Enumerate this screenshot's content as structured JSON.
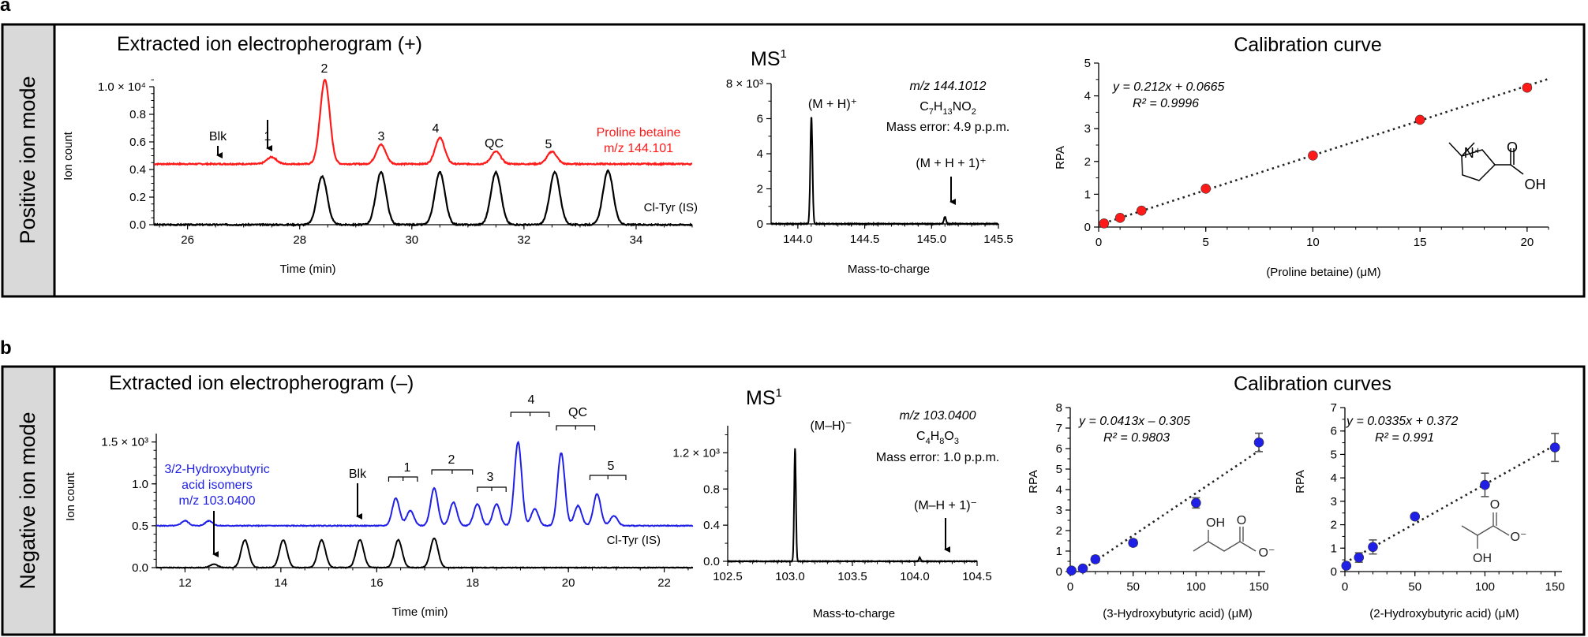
{
  "panels": {
    "a": {
      "letter": "a",
      "mode_label": "Positive ion mode",
      "eph_title": "Extracted ion electropherogram (+)",
      "eph_ylabel": "Ion count",
      "eph_xlabel": "Time (min)",
      "eph_yticks": [
        "0.0",
        "0.2",
        "0.4",
        "0.6",
        "0.8",
        "1.0 × 10⁴"
      ],
      "eph_xticks": [
        "26",
        "28",
        "30",
        "32",
        "34"
      ],
      "trace_label_l1": "Proline betaine",
      "trace_label_l2": "m/z 144.101",
      "is_label": "Cl-Tyr (IS)",
      "peak_labels": {
        "blk": "Blk",
        "p1": "1",
        "p2": "2",
        "p3": "3",
        "p4": "4",
        "qc": "QC",
        "p5": "5"
      },
      "ms_title": "MS",
      "ms_title_sup": "1",
      "ms_xlabel": "Mass-to-charge",
      "ms_yticks": [
        "0",
        "2",
        "4",
        "6",
        "8 × 10³"
      ],
      "ms_xticks": [
        "144.0",
        "144.5",
        "145.0",
        "145.5"
      ],
      "ms_mz": "m/z 144.1012",
      "ms_formula": "C7H13NO2",
      "ms_error": "Mass error: 4.9 p.p.m.",
      "ms_peak1": "(M + H)⁺",
      "ms_peak2": "(M + H + 1)⁺",
      "cal_title": "Calibration curve",
      "cal_xlabel": "(Proline betaine) (μM)",
      "cal_ylabel": "RPA",
      "cal_eq": "y = 0.212x + 0.0665",
      "cal_r2": "R² = 0.9996",
      "cal_xticks": [
        "0",
        "5",
        "10",
        "15",
        "20"
      ],
      "cal_yticks": [
        "0",
        "1",
        "2",
        "3",
        "4",
        "5"
      ],
      "struct_n": "N⁺",
      "struct_o": "O",
      "struct_oh": "OH"
    },
    "b": {
      "letter": "b",
      "mode_label": "Negative ion mode",
      "eph_title": "Extracted ion electropherogram (–)",
      "eph_ylabel": "Ion count",
      "eph_xlabel": "Time (min)",
      "eph_yticks": [
        "0.0",
        "0.5",
        "1.0",
        "1.5 × 10³"
      ],
      "eph_xticks": [
        "12",
        "14",
        "16",
        "18",
        "20",
        "22"
      ],
      "trace_label_l1": "3/2-Hydroxybutyric",
      "trace_label_l2": "acid isomers",
      "trace_label_l3": "m/z 103.0400",
      "is_label": "Cl-Tyr (IS)",
      "peak_labels": {
        "blk": "Blk",
        "p1": "1",
        "p2": "2",
        "p3": "3",
        "p4": "4",
        "qc": "QC",
        "p5": "5"
      },
      "ms_title": "MS",
      "ms_title_sup": "1",
      "ms_xlabel": "Mass-to-charge",
      "ms_yticks": [
        "0.0",
        "0.4",
        "0.8",
        "1.2 × 10³"
      ],
      "ms_xticks": [
        "102.5",
        "103.0",
        "103.5",
        "104.0",
        "104.5"
      ],
      "ms_mz": "m/z 103.0400",
      "ms_formula": "C4H8O3",
      "ms_error": "Mass error: 1.0 p.p.m.",
      "ms_peak1": "(M–H)⁻",
      "ms_peak2": "(M–H + 1)⁻",
      "cal_title": "Calibration curves",
      "cal1_xlabel": "(3-Hydroxybutyric acid) (μM)",
      "cal2_xlabel": "(2-Hydroxybutyric acid) (μM)",
      "cal_ylabel": "RPA",
      "cal1_eq": "y = 0.0413x – 0.305",
      "cal1_r2": "R² = 0.9803",
      "cal2_eq": "y = 0.0335x + 0.372",
      "cal2_r2": "R² = 0.991",
      "cal_xticks": [
        "0",
        "50",
        "100",
        "150"
      ],
      "cal_yticks": [
        "0",
        "1",
        "2",
        "3",
        "4",
        "5",
        "6",
        "7",
        "8"
      ],
      "struct_oh": "OH",
      "struct_o": "O",
      "struct_om": "O⁻"
    }
  },
  "colors": {
    "red": "#ff1a1a",
    "blue": "#1f1fe6",
    "black": "#000000",
    "label_bg": "#d9d9d9"
  },
  "chart_data": [
    {
      "type": "line",
      "title": "Extracted ion electropherogram (+)",
      "xlabel": "Time (min)",
      "ylabel": "Ion count",
      "xlim": [
        25.4,
        35
      ],
      "ylim": [
        0,
        10000
      ],
      "series": [
        {
          "name": "Proline betaine m/z 144.101",
          "color": "#ff1a1a",
          "baseline": 4400,
          "peaks": [
            [
              27.5,
              4900
            ],
            [
              28.45,
              10500
            ],
            [
              29.45,
              5800
            ],
            [
              30.5,
              6300
            ],
            [
              31.5,
              5300
            ],
            [
              32.5,
              5300
            ]
          ]
        },
        {
          "name": "Cl-Tyr (IS)",
          "color": "#000000",
          "baseline": 0,
          "peaks": [
            [
              28.4,
              3500
            ],
            [
              29.45,
              3800
            ],
            [
              30.5,
              3800
            ],
            [
              31.5,
              3800
            ],
            [
              32.55,
              3800
            ],
            [
              33.5,
              3900
            ]
          ]
        }
      ]
    },
    {
      "type": "line",
      "title": "MS1",
      "xlabel": "Mass-to-charge",
      "xlim": [
        143.8,
        145.5
      ],
      "ylim": [
        0,
        8000
      ],
      "series": [
        {
          "name": "",
          "peaks": [
            [
              144.1012,
              6100
            ],
            [
              145.1,
              400
            ]
          ]
        }
      ]
    },
    {
      "type": "scatter",
      "title": "Calibration curve",
      "xlabel": "(Proline betaine) (μM)",
      "ylabel": "RPA",
      "xlim": [
        0,
        21
      ],
      "ylim": [
        0,
        5
      ],
      "x": [
        0.25,
        1,
        2,
        5,
        10,
        15,
        20
      ],
      "y": [
        0.11,
        0.28,
        0.5,
        1.17,
        2.18,
        3.27,
        4.25
      ],
      "fit": {
        "slope": 0.212,
        "intercept": 0.0665
      },
      "color": "#ff1a1a"
    },
    {
      "type": "line",
      "title": "Extracted ion electropherogram (–)",
      "xlabel": "Time (min)",
      "ylabel": "Ion count",
      "xlim": [
        11.4,
        22.6
      ],
      "ylim": [
        0,
        1600
      ],
      "series": [
        {
          "name": "3/2-Hydroxybutyric acid isomers m/z 103.0400",
          "color": "#1f1fe6",
          "baseline": 500,
          "peaks": [
            [
              12.0,
              560
            ],
            [
              12.5,
              560
            ],
            [
              16.4,
              830
            ],
            [
              16.7,
              680
            ],
            [
              17.2,
              950
            ],
            [
              17.6,
              780
            ],
            [
              18.1,
              760
            ],
            [
              18.5,
              760
            ],
            [
              18.95,
              1500
            ],
            [
              19.3,
              700
            ],
            [
              19.85,
              1370
            ],
            [
              20.2,
              740
            ],
            [
              20.6,
              880
            ],
            [
              20.95,
              620
            ]
          ]
        },
        {
          "name": "Cl-Tyr (IS)",
          "color": "#000000",
          "baseline": 0,
          "peaks": [
            [
              12.6,
              40
            ],
            [
              13.25,
              330
            ],
            [
              14.05,
              330
            ],
            [
              14.85,
              330
            ],
            [
              15.65,
              330
            ],
            [
              16.45,
              330
            ],
            [
              17.2,
              350
            ]
          ]
        }
      ]
    },
    {
      "type": "line",
      "title": "MS1",
      "xlabel": "Mass-to-charge",
      "xlim": [
        102.5,
        104.5
      ],
      "ylim": [
        0,
        1500
      ],
      "series": [
        {
          "name": "",
          "peaks": [
            [
              103.04,
              1250
            ],
            [
              104.04,
              40
            ]
          ]
        }
      ]
    },
    {
      "type": "scatter",
      "title": "Calibration curves",
      "xlabel": "(3-Hydroxybutyric acid) (μM)",
      "ylabel": "RPA",
      "xlim": [
        0,
        155
      ],
      "ylim": [
        0,
        8
      ],
      "x": [
        1,
        10,
        20,
        50,
        100,
        150
      ],
      "y": [
        0.05,
        0.15,
        0.6,
        1.4,
        3.35,
        6.3
      ],
      "err": [
        0.05,
        0.05,
        0.15,
        0.15,
        0.25,
        0.45
      ],
      "fit": {
        "slope": 0.0413,
        "intercept": -0.305
      },
      "color": "#1f1fe6"
    },
    {
      "type": "scatter",
      "title": "Calibration curves",
      "xlabel": "(2-Hydroxybutyric acid) (μM)",
      "ylabel": "RPA",
      "xlim": [
        0,
        155
      ],
      "ylim": [
        0,
        7
      ],
      "x": [
        1,
        10,
        20,
        50,
        100,
        150
      ],
      "y": [
        0.25,
        0.6,
        1.05,
        2.35,
        3.7,
        5.3
      ],
      "err": [
        0.05,
        0.2,
        0.3,
        0.1,
        0.5,
        0.6
      ],
      "fit": {
        "slope": 0.0335,
        "intercept": 0.372
      },
      "color": "#1f1fe6"
    }
  ]
}
